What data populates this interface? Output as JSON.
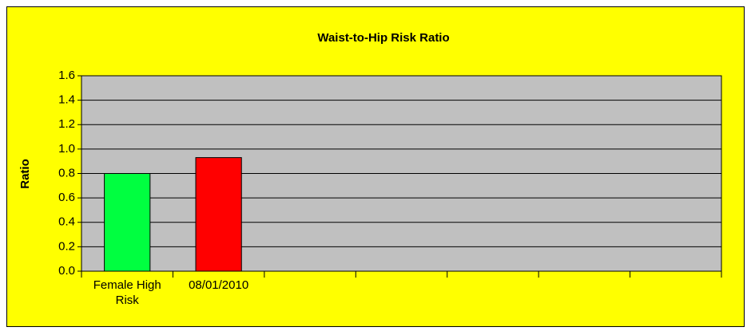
{
  "chart_data": {
    "type": "bar",
    "title": "Waist-to-Hip Risk Ratio",
    "y_label": "Ratio",
    "categories": [
      "Female High Risk",
      "08/01/2010",
      null,
      null,
      null,
      null,
      null
    ],
    "values": [
      0.8,
      0.93,
      null,
      null,
      null,
      null,
      null
    ],
    "colors": [
      "#00ff40",
      "#ff0000"
    ],
    "background": "#ffff00",
    "plot_background": "#c0c0c0",
    "ylim": [
      0,
      1.6
    ],
    "yticks": [
      {
        "value": 0,
        "label": "0.0"
      },
      0.2,
      0.4,
      0.6,
      0.8,
      {
        "value": 1,
        "label": "1.0"
      },
      1.2,
      1.4,
      1.6
    ],
    "grid": true
  }
}
